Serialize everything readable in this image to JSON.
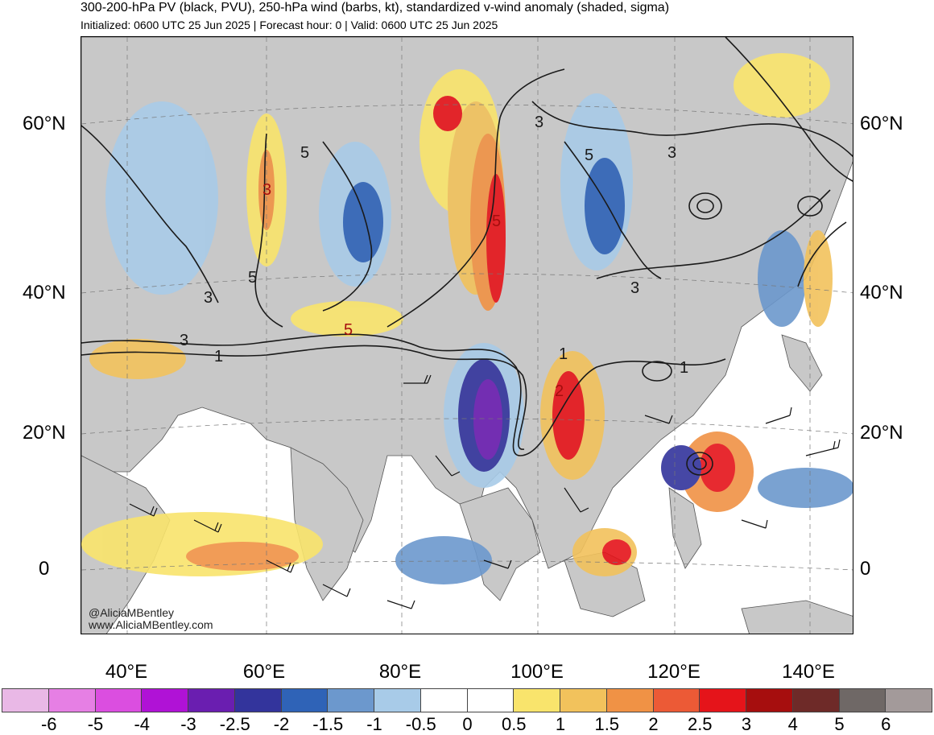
{
  "header": {
    "title": "300-200-hPa PV (black, PVU), 250-hPa wind (barbs, kt), standardized v-wind anomaly (shaded, sigma)",
    "subtitle": "Initialized: 0600 UTC 25 Jun 2025 | Forecast hour: 0 | Valid: 0600 UTC 25 Jun 2025"
  },
  "map": {
    "lat_labels": [
      "60°N",
      "40°N",
      "20°N",
      "0"
    ],
    "lon_labels": [
      "40°E",
      "60°E",
      "80°E",
      "100°E",
      "120°E",
      "140°E"
    ],
    "credit_handle": "@AliciaMBentley",
    "credit_url": "www.AliciaMBentley.com",
    "pv_contour_labels": [
      "3",
      "5",
      "3",
      "5",
      "3",
      "1",
      "5",
      "3",
      "5",
      "3",
      "1",
      "2",
      "1",
      "3",
      "5"
    ],
    "land_color": "#c8c8c8",
    "contour_color": "#1a1a1a"
  },
  "colorbar": {
    "colors": [
      "#e9b8e6",
      "#e67fe4",
      "#db4ee0",
      "#b012d6",
      "#6a1eb0",
      "#33349c",
      "#2f63b7",
      "#6c98cd",
      "#a8cbe8",
      "#ffffff",
      "#ffffff",
      "#f9e46c",
      "#f2c25c",
      "#f09245",
      "#ec5a36",
      "#e5141a",
      "#a60e0e",
      "#6e2a28",
      "#6f6866",
      "#a39a9a"
    ],
    "labels": [
      "-6",
      "-5",
      "-4",
      "-3",
      "-2.5",
      "-2",
      "-1.5",
      "-1",
      "-0.5",
      "0",
      "0.5",
      "1",
      "1.5",
      "2",
      "2.5",
      "3",
      "4",
      "5",
      "6"
    ]
  }
}
